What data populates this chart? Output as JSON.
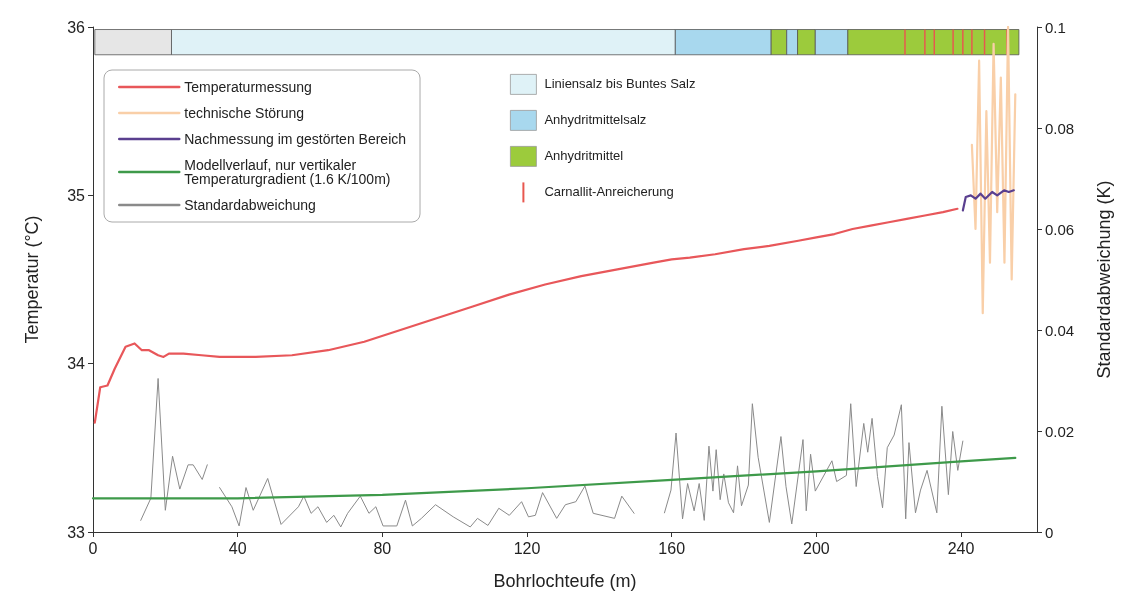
{
  "chart_data": {
    "type": "line",
    "xlabel": "Bohrlochteufe (m)",
    "ylabel": "Temperatur (°C)",
    "y2label": "Standardabweichung (K)",
    "xlim": [
      0,
      261
    ],
    "xticks": [
      0,
      40,
      80,
      120,
      160,
      200,
      240
    ],
    "ylim": [
      33,
      36
    ],
    "yticks": [
      33,
      34,
      35,
      36
    ],
    "y2lim": [
      0,
      0.1
    ],
    "y2ticks": [
      0,
      0.02,
      0.04,
      0.06,
      0.08,
      0.1
    ],
    "grid": false,
    "legend": "top left",
    "marker": "none",
    "line_style": "solid",
    "series": [
      {
        "name": "Temperaturmessung",
        "color": "#e8575a",
        "x": [
          0.5,
          2,
          4,
          6,
          9,
          11.5,
          13.5,
          15.5,
          18,
          19.5,
          21,
          25,
          30,
          35,
          45,
          55,
          65,
          75,
          85,
          95,
          105,
          115,
          125,
          135,
          145,
          155,
          160,
          165,
          172,
          180,
          187,
          195,
          200,
          205,
          210,
          215,
          220,
          225,
          230,
          235,
          239
        ],
        "values": [
          33.65,
          33.86,
          33.87,
          33.97,
          34.1,
          34.12,
          34.08,
          34.08,
          34.05,
          34.04,
          34.06,
          34.06,
          34.05,
          34.04,
          34.04,
          34.05,
          34.08,
          34.13,
          34.2,
          34.27,
          34.34,
          34.41,
          34.47,
          34.52,
          34.56,
          34.6,
          34.62,
          34.63,
          34.65,
          34.68,
          34.7,
          34.73,
          34.75,
          34.77,
          34.8,
          34.82,
          34.84,
          34.86,
          34.88,
          34.9,
          34.92
        ]
      },
      {
        "name": "technische Störung",
        "color": "#f9cfa8",
        "x": [
          243,
          244,
          245,
          246,
          247,
          248,
          249,
          250,
          251,
          252,
          253,
          254,
          255
        ],
        "values": [
          35.3,
          34.8,
          35.8,
          34.3,
          35.5,
          34.6,
          35.9,
          34.9,
          35.7,
          34.6,
          36,
          34.5,
          35.6
        ]
      },
      {
        "name": "Nachmessung im gestörten Bereich",
        "color": "#5a3f8f",
        "x": [
          240.5,
          241.3,
          242.7,
          244,
          245.4,
          246.7,
          248.6,
          250,
          251.9,
          253.2,
          254.6
        ],
        "values": [
          34.91,
          34.99,
          35,
          34.98,
          35.01,
          34.98,
          35.02,
          35,
          35.03,
          35.02,
          35.03
        ]
      },
      {
        "name": "Modellverlauf, nur vertikaler\nTemperaturgradient (1.6 K/100m)",
        "color": "#3e9a4a",
        "x": [
          0,
          40,
          80,
          120,
          160,
          200,
          240,
          255
        ],
        "values": [
          33.2,
          33.2,
          33.22,
          33.26,
          33.31,
          33.36,
          33.42,
          33.44
        ]
      },
      {
        "name": "Standardabweichung",
        "color": "#8a8a8a",
        "axis": "y2",
        "x": [
          13.2,
          16,
          18,
          20,
          22,
          24,
          26.3,
          27.7,
          30.2,
          31.6,
          33,
          35,
          38.4,
          40.4,
          42.3,
          44.3,
          48.3,
          52,
          56.8,
          58.3,
          60.3,
          62.2,
          64.6,
          66.6,
          68.5,
          70.4,
          73.9,
          76.3,
          78.2,
          80.2,
          84,
          86.4,
          88.3,
          90.8,
          94.7,
          99.6,
          104.3,
          106.3,
          109.2,
          112.2,
          115.1,
          118.5,
          120.4,
          122.3,
          124.3,
          128.2,
          130.6,
          133.5,
          136,
          138.3,
          144.2,
          146.2,
          149.6,
          153,
          158,
          159.8,
          161.2,
          163,
          164.4,
          166.2,
          167.6,
          169,
          170.3,
          171.4,
          172.3,
          173.4,
          174.4,
          175.7,
          177.1,
          178.2,
          179.3,
          181.2,
          182.3,
          183.9,
          187,
          190.2,
          191.6,
          193.2,
          196.3,
          197.2,
          198.4,
          199.7,
          204.3,
          205.6,
          208.3,
          209.5,
          211,
          213.1,
          214.2,
          215.4,
          216.9,
          218.3,
          219.6,
          221.5,
          223.5,
          224.7,
          225.6,
          227.4,
          228.8,
          230.6,
          233.3,
          234.7,
          236.5,
          237.7,
          239.1,
          240.5
        ],
        "values": [
          0.0023,
          0.0067,
          0.0304,
          0.0043,
          0.015,
          0.0085,
          0.0133,
          0.0133,
          0.0104,
          0.0133,
          null,
          0.0088,
          0.005,
          0.0012,
          0.0088,
          0.0043,
          0.0106,
          0.0015,
          0.005,
          0.0071,
          0.0037,
          0.005,
          0.0019,
          0.0033,
          0.001,
          0.0037,
          0.0071,
          0.0037,
          0.005,
          0.0012,
          0.0012,
          0.0063,
          0.0012,
          0.0027,
          0.0054,
          0.003,
          0.001,
          0.0027,
          0.0013,
          0.0047,
          0.0033,
          0.006,
          0.003,
          0.0033,
          0.0078,
          0.0027,
          0.0054,
          0.006,
          0.0091,
          0.0037,
          0.0027,
          0.0071,
          0.0037,
          null,
          0.0038,
          0.0083,
          0.0196,
          0.0026,
          0.0096,
          0.0042,
          0.0096,
          0.0023,
          0.017,
          0.0081,
          0.0163,
          0.0064,
          0.0115,
          0.0058,
          0.0038,
          0.0131,
          0.0052,
          0.0093,
          0.0254,
          0.0148,
          0.0019,
          0.0189,
          0.009,
          0.0016,
          0.0183,
          0.0042,
          0.0154,
          0.0081,
          0.0141,
          0.01,
          0.0112,
          0.0254,
          0.009,
          0.0215,
          0.0158,
          0.0225,
          0.011,
          0.0048,
          0.0167,
          0.0192,
          0.0252,
          0.0026,
          0.0177,
          0.0038,
          0.0083,
          0.0122,
          0.0038,
          0.0249,
          0.0074,
          0.0199,
          0.0122,
          0.018
        ]
      }
    ],
    "bands": [
      {
        "axis": "x",
        "from": 0.5,
        "to": 21.7,
        "label": null,
        "color": "#e6e6e6"
      },
      {
        "axis": "x",
        "from": 21.7,
        "to": 161,
        "label": "Liniensalz bis Buntes Salz",
        "color": "#dff2f7"
      },
      {
        "axis": "x",
        "from": 161,
        "to": 187.5,
        "label": "Anhydritmittelsalz",
        "color": "#a8d8ee"
      },
      {
        "axis": "x",
        "from": 187.5,
        "to": 191.8,
        "label": "Anhydritmittel",
        "color": "#9ccb3c"
      },
      {
        "axis": "x",
        "from": 191.8,
        "to": 194.8,
        "label": null,
        "color": "#a8d8ee"
      },
      {
        "axis": "x",
        "from": 194.8,
        "to": 199.7,
        "label": null,
        "color": "#9ccb3c"
      },
      {
        "axis": "x",
        "from": 199.7,
        "to": 208.7,
        "label": null,
        "color": "#a8d8ee"
      },
      {
        "axis": "x",
        "from": 208.7,
        "to": 256,
        "label": null,
        "color": "#9ccb3c"
      },
      {
        "axis": "x",
        "from": 224.3,
        "to": 224.7,
        "label": "Carnallit-Anreicherung",
        "color": "#e8574f"
      },
      {
        "axis": "x",
        "from": 229.8,
        "to": 230.2,
        "label": null,
        "color": "#e8574f"
      },
      {
        "axis": "x",
        "from": 232.4,
        "to": 232.8,
        "label": null,
        "color": "#e8574f"
      },
      {
        "axis": "x",
        "from": 237.6,
        "to": 238,
        "label": null,
        "color": "#e8574f"
      },
      {
        "axis": "x",
        "from": 240.3,
        "to": 240.7,
        "label": null,
        "color": "#e8574f"
      },
      {
        "axis": "x",
        "from": 242.8,
        "to": 243.2,
        "label": null,
        "color": "#e8574f"
      },
      {
        "axis": "x",
        "from": 246.3,
        "to": 246.7,
        "label": null,
        "color": "#e8574f"
      },
      {
        "axis": "x",
        "from": 252.5,
        "to": 252.9,
        "label": null,
        "color": "#e8574f"
      }
    ]
  }
}
